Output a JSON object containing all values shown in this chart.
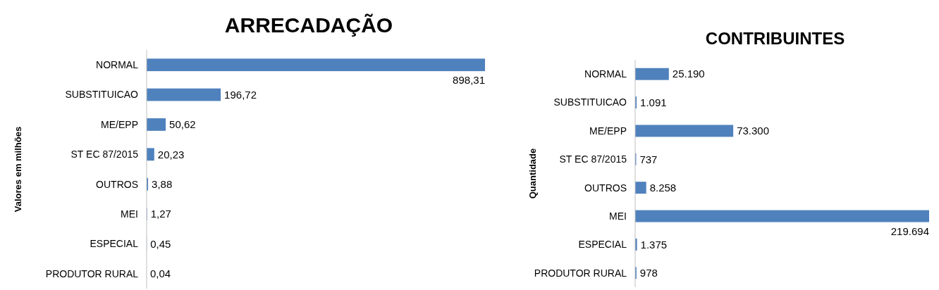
{
  "chart_data": [
    {
      "type": "bar",
      "orientation": "horizontal",
      "title": "ARRECADAÇÃO",
      "ylabel": "Valores em milhões",
      "categories": [
        "NORMAL",
        "SUBSTITUICAO",
        "ME/EPP",
        "ST EC 87/2015",
        "OUTROS",
        "MEI",
        "ESPECIAL",
        "PRODUTOR RURAL"
      ],
      "series": [
        {
          "color": "#4f81bd",
          "values": [
            898.31,
            196.72,
            50.62,
            20.23,
            3.88,
            1.27,
            0.45,
            0.04
          ],
          "value_labels": [
            "898,31",
            "196,72",
            "50,62",
            "20,23",
            "3,88",
            "1,27",
            "0,45",
            "0,04"
          ]
        }
      ]
    },
    {
      "type": "bar",
      "orientation": "horizontal",
      "title": "CONTRIBUINTES",
      "ylabel": "Quantidade",
      "categories": [
        "NORMAL",
        "SUBSTITUICAO",
        "ME/EPP",
        "ST EC 87/2015",
        "OUTROS",
        "MEI",
        "ESPECIAL",
        "PRODUTOR RURAL"
      ],
      "series": [
        {
          "color": "#4f81bd",
          "values": [
            25190,
            1091,
            73300,
            737,
            8258,
            219694,
            1375,
            978
          ],
          "value_labels": [
            "25.190",
            "1.091",
            "73.300",
            "737",
            "8.258",
            "219.694",
            "1.375",
            "978"
          ]
        }
      ]
    }
  ]
}
